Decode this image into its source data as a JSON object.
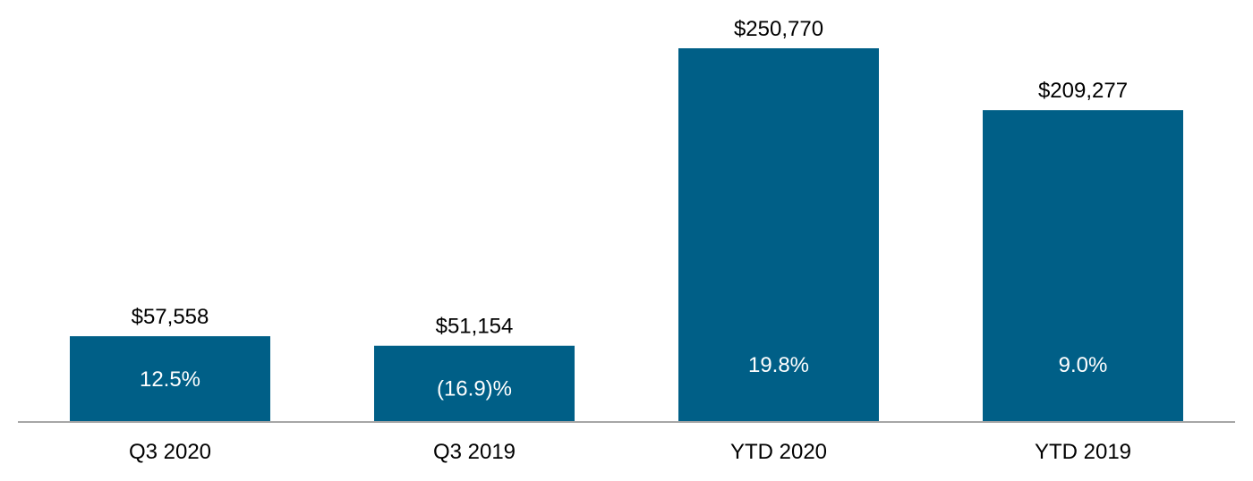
{
  "colors": {
    "bar": "#005F87",
    "axis_line": "#A6A6A6",
    "value_text": "#000000",
    "inner_text": "#FFFFFF"
  },
  "chart_data": {
    "type": "bar",
    "title": "",
    "xlabel": "",
    "ylabel": "",
    "categories": [
      "Q3 2020",
      "Q3 2019",
      "YTD 2020",
      "YTD 2019"
    ],
    "values": [
      57558,
      51154,
      250770,
      209277
    ],
    "value_labels": [
      "$57,558",
      "$51,154",
      "$250,770",
      "$209,277"
    ],
    "change_labels": [
      "12.5%",
      "(16.9)%",
      "19.8%",
      "9.0%"
    ],
    "ylim": [
      0,
      250770
    ],
    "grid": false,
    "legend": "none"
  }
}
